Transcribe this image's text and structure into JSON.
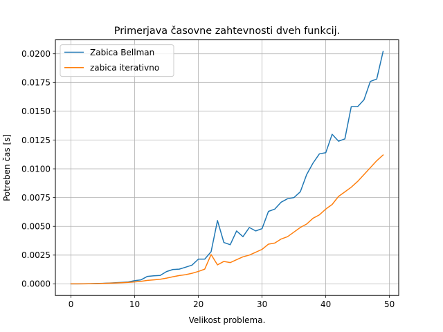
{
  "chart_data": {
    "type": "line",
    "title": "Primerjava časovne zahtevnosti dveh funkcij.",
    "xlabel": "Velikost problema.",
    "ylabel": "Potreben čas [s]",
    "xlim": [
      -2.45,
      51.45
    ],
    "ylim": [
      -0.00101,
      0.02121
    ],
    "xticks": [
      0,
      10,
      20,
      30,
      40,
      50
    ],
    "xtick_labels": [
      "0",
      "10",
      "20",
      "30",
      "40",
      "50"
    ],
    "yticks": [
      0.0,
      0.0025,
      0.005,
      0.0075,
      0.01,
      0.0125,
      0.015,
      0.0175,
      0.02
    ],
    "ytick_labels": [
      "0.0000",
      "0.0025",
      "0.0050",
      "0.0075",
      "0.0100",
      "0.0125",
      "0.0150",
      "0.0175",
      "0.0200"
    ],
    "grid": true,
    "legend_position": "top-left",
    "x": [
      0,
      1,
      2,
      3,
      4,
      5,
      6,
      7,
      8,
      9,
      10,
      11,
      12,
      13,
      14,
      15,
      16,
      17,
      18,
      19,
      20,
      21,
      22,
      23,
      24,
      25,
      26,
      27,
      28,
      29,
      30,
      31,
      32,
      33,
      34,
      35,
      36,
      37,
      38,
      39,
      40,
      41,
      42,
      43,
      44,
      45,
      46,
      47,
      48,
      49
    ],
    "series": [
      {
        "name": "Zabica Bellman",
        "color": "#1f77b4",
        "values": [
          0.0,
          0.0,
          1e-05,
          2e-05,
          3e-05,
          5e-05,
          7e-05,
          0.0001,
          0.00013,
          0.00017,
          0.00028,
          0.00035,
          0.00065,
          0.0007,
          0.00073,
          0.00107,
          0.00125,
          0.00128,
          0.00145,
          0.00163,
          0.00215,
          0.00215,
          0.0028,
          0.0055,
          0.0036,
          0.0034,
          0.0046,
          0.0041,
          0.0049,
          0.0046,
          0.0048,
          0.0063,
          0.0065,
          0.0071,
          0.0074,
          0.0075,
          0.008,
          0.0095,
          0.0105,
          0.0113,
          0.0114,
          0.013,
          0.0124,
          0.0126,
          0.0154,
          0.0154,
          0.016,
          0.0176,
          0.0178,
          0.0202
        ]
      },
      {
        "name": "zabica iterativno",
        "color": "#ff7f0e",
        "values": [
          0.0,
          0.0,
          0.0,
          1e-05,
          2e-05,
          4e-05,
          6e-05,
          8e-05,
          0.0001,
          0.00013,
          0.00017,
          0.00022,
          0.0003,
          0.00035,
          0.0004,
          0.0005,
          0.00062,
          0.00072,
          0.0008,
          0.00092,
          0.00108,
          0.00128,
          0.00255,
          0.00165,
          0.00195,
          0.00185,
          0.0021,
          0.00235,
          0.0025,
          0.00275,
          0.003,
          0.00345,
          0.00355,
          0.0039,
          0.0041,
          0.0045,
          0.0049,
          0.0052,
          0.0057,
          0.006,
          0.0065,
          0.0069,
          0.0076,
          0.008,
          0.0084,
          0.0089,
          0.0095,
          0.0101,
          0.0107,
          0.0112
        ]
      }
    ]
  }
}
